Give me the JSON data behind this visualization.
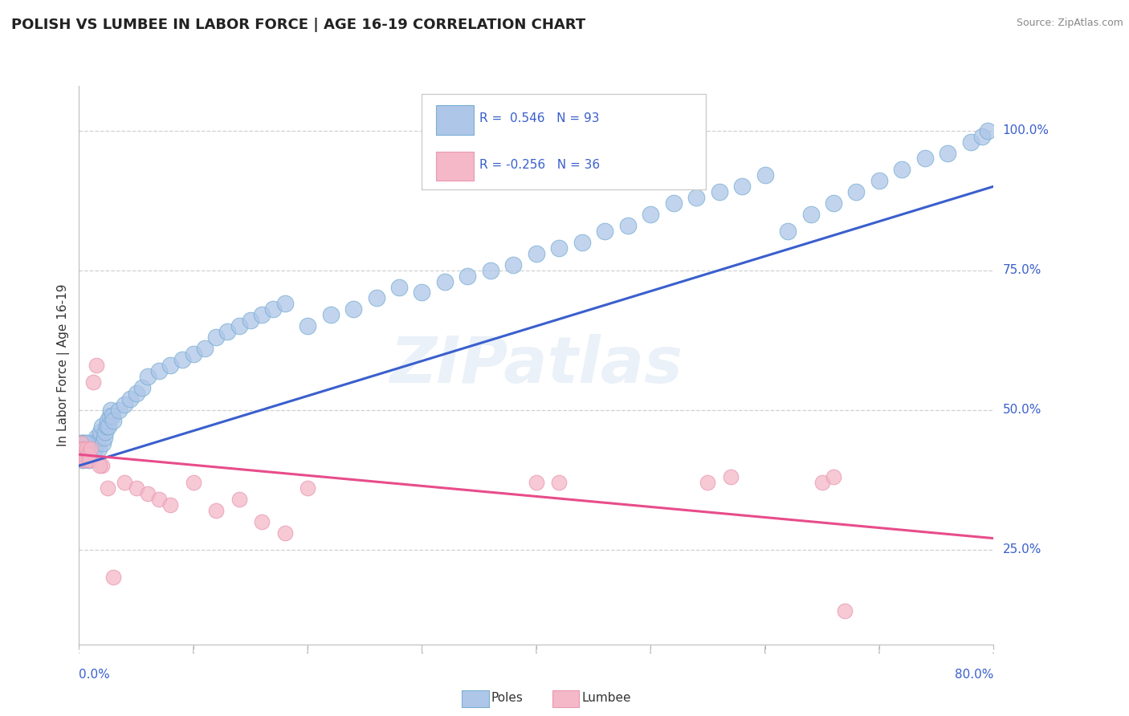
{
  "title": "POLISH VS LUMBEE IN LABOR FORCE | AGE 16-19 CORRELATION CHART",
  "source": "Source: ZipAtlas.com",
  "ylabel": "In Labor Force | Age 16-19",
  "xlim": [
    0.0,
    80.0
  ],
  "ylim": [
    8.0,
    108.0
  ],
  "yticks": [
    25.0,
    50.0,
    75.0,
    100.0
  ],
  "ytick_labels": [
    "25.0%",
    "50.0%",
    "75.0%",
    "100.0%"
  ],
  "poles_color": "#aec6e8",
  "poles_edge": "#7aafd4",
  "lumbee_color": "#f4b8c8",
  "lumbee_edge": "#e898b0",
  "poles_line_color": "#3a5fcd",
  "lumbee_line_color": "#e84c8b",
  "poles_R": 0.546,
  "poles_N": 93,
  "lumbee_R": -0.256,
  "lumbee_N": 36,
  "watermark": "ZIPatlas",
  "grid_color": "#d0d0d0",
  "bg_color": "#ffffff",
  "poles_trend": [
    40.0,
    90.0
  ],
  "lumbee_trend": [
    42.0,
    27.0
  ],
  "poles_x": [
    0.15,
    0.2,
    0.25,
    0.3,
    0.35,
    0.4,
    0.5,
    0.6,
    0.7,
    0.8,
    0.9,
    1.0,
    1.1,
    1.2,
    1.3,
    1.4,
    1.5,
    1.6,
    1.7,
    1.8,
    1.9,
    2.0,
    2.1,
    2.2,
    2.3,
    2.4,
    2.5,
    2.6,
    2.7,
    2.8,
    2.9,
    3.0,
    3.5,
    4.0,
    4.5,
    5.0,
    5.5,
    6.0,
    7.0,
    8.0,
    9.0,
    10.0,
    11.0,
    12.0,
    13.0,
    14.0,
    15.0,
    16.0,
    17.0,
    18.0,
    20.0,
    22.0,
    24.0,
    26.0,
    28.0,
    30.0,
    32.0,
    34.0,
    36.0,
    38.0,
    40.0,
    42.0,
    44.0,
    46.0,
    48.0,
    50.0,
    52.0,
    54.0,
    56.0,
    58.0,
    60.0,
    62.0,
    64.0,
    66.0,
    68.0,
    70.0,
    72.0,
    74.0,
    76.0,
    78.0,
    79.0,
    79.5,
    0.1,
    0.12,
    0.18,
    0.22,
    0.28,
    0.32,
    0.38,
    0.45,
    0.55,
    0.65,
    0.75
  ],
  "poles_y": [
    43,
    42,
    44,
    41,
    43,
    42,
    43,
    44,
    42,
    43,
    41,
    44,
    43,
    42,
    44,
    43,
    45,
    44,
    43,
    45,
    46,
    47,
    44,
    45,
    46,
    47,
    48,
    47,
    49,
    50,
    49,
    48,
    50,
    51,
    52,
    53,
    54,
    56,
    57,
    58,
    59,
    60,
    61,
    63,
    64,
    65,
    66,
    67,
    68,
    69,
    65,
    67,
    68,
    70,
    72,
    71,
    73,
    74,
    75,
    76,
    78,
    79,
    80,
    82,
    83,
    85,
    87,
    88,
    89,
    90,
    92,
    82,
    85,
    87,
    89,
    91,
    93,
    95,
    96,
    98,
    99,
    100,
    42,
    43,
    44,
    42,
    43,
    44,
    43,
    44,
    43,
    44,
    42
  ],
  "lumbee_x": [
    0.1,
    0.15,
    0.2,
    0.25,
    0.3,
    0.4,
    0.5,
    0.6,
    0.7,
    0.8,
    0.9,
    1.0,
    1.2,
    1.5,
    2.0,
    2.5,
    3.0,
    4.0,
    5.0,
    6.0,
    7.0,
    8.0,
    10.0,
    12.0,
    14.0,
    16.0,
    18.0,
    20.0,
    40.0,
    42.0,
    55.0,
    57.0,
    65.0,
    66.0,
    67.0,
    1.8
  ],
  "lumbee_y": [
    42,
    44,
    43,
    41,
    42,
    43,
    42,
    41,
    43,
    42,
    41,
    43,
    55,
    58,
    40,
    36,
    20,
    37,
    36,
    35,
    34,
    33,
    37,
    32,
    34,
    30,
    28,
    36,
    37,
    37,
    37,
    38,
    37,
    38,
    14,
    40
  ]
}
